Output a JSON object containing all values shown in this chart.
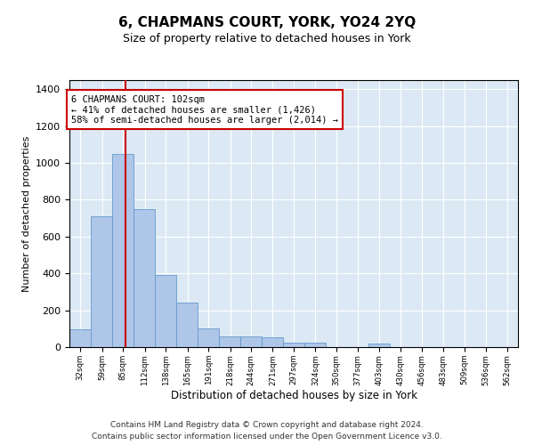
{
  "title": "6, CHAPMANS COURT, YORK, YO24 2YQ",
  "subtitle": "Size of property relative to detached houses in York",
  "xlabel": "Distribution of detached houses by size in York",
  "ylabel": "Number of detached properties",
  "bins": [
    32,
    59,
    85,
    112,
    138,
    165,
    191,
    218,
    244,
    271,
    297,
    324,
    350,
    377,
    403,
    430,
    456,
    483,
    509,
    536,
    562
  ],
  "bar_values": [
    95,
    710,
    1050,
    750,
    390,
    240,
    100,
    60,
    60,
    55,
    25,
    25,
    0,
    0,
    20,
    0,
    0,
    0,
    0,
    0,
    0
  ],
  "bar_color": "#aec6e8",
  "bar_edge_color": "#6699cc",
  "property_size": 102,
  "property_line_color": "#cc0000",
  "annotation_text": "6 CHAPMANS COURT: 102sqm\n← 41% of detached houses are smaller (1,426)\n58% of semi-detached houses are larger (2,014) →",
  "annotation_box_color": "#cc0000",
  "ylim": [
    0,
    1450
  ],
  "yticks": [
    0,
    200,
    400,
    600,
    800,
    1000,
    1200,
    1400
  ],
  "background_color": "#dce9f5",
  "footer_line1": "Contains HM Land Registry data © Crown copyright and database right 2024.",
  "footer_line2": "Contains public sector information licensed under the Open Government Licence v3.0.",
  "title_fontsize": 11,
  "subtitle_fontsize": 9,
  "xlabel_fontsize": 8.5,
  "ylabel_fontsize": 8,
  "annotation_fontsize": 7.5,
  "footer_fontsize": 6.5
}
